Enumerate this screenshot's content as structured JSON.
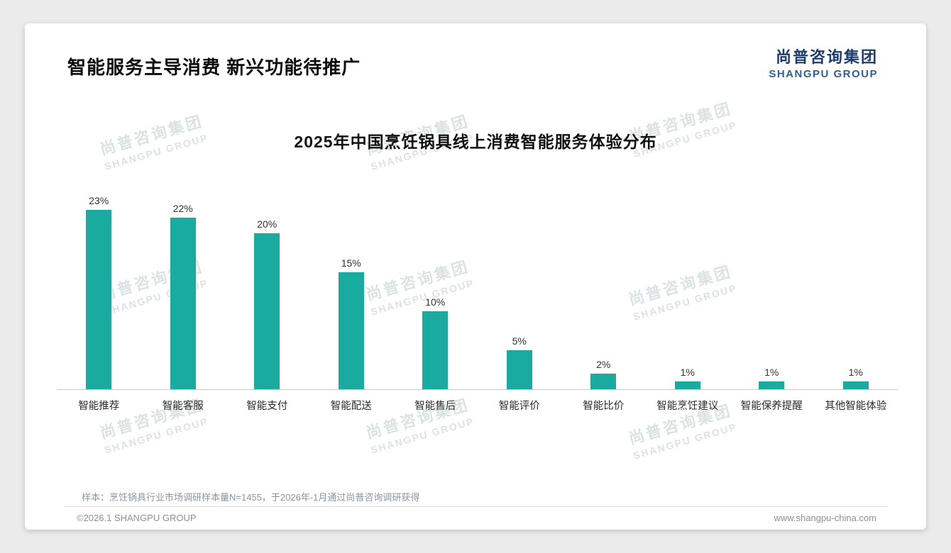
{
  "page": {
    "title": "智能服务主导消费 新兴功能待推广",
    "logo": {
      "cn": "尚普咨询集团",
      "en": "SHANGPU GROUP"
    },
    "watermark": {
      "cn": "尚普咨询集团",
      "en": "SHANGPU GROUP"
    },
    "footer": {
      "note": "样本：烹饪锅具行业市场调研样本量N=1455，于2026年-1月通过尚普咨询调研获得",
      "copyright": "©2026.1 SHANGPU GROUP",
      "website": "www.shangpu-china.com"
    }
  },
  "colors": {
    "bar": "#19aba0",
    "logo_navy": "#1d3c6e",
    "logo_blue": "#2e5f9e"
  },
  "chart_data": {
    "type": "bar",
    "title": "2025年中国烹饪锅具线上消费智能服务体验分布",
    "categories": [
      "智能推荐",
      "智能客服",
      "智能支付",
      "智能配送",
      "智能售后",
      "智能评价",
      "智能比价",
      "智能烹饪建议",
      "智能保养提醒",
      "其他智能体验"
    ],
    "values": [
      23,
      22,
      20,
      15,
      10,
      5,
      2,
      1,
      1,
      1
    ],
    "value_labels": [
      "23%",
      "22%",
      "20%",
      "15%",
      "10%",
      "5%",
      "2%",
      "1%",
      "1%",
      "1%"
    ],
    "unit": "%",
    "xlabel": "",
    "ylabel": "",
    "ylim": [
      0,
      25
    ],
    "grid": false,
    "legend": "none",
    "bar_color": "#19aba0"
  }
}
